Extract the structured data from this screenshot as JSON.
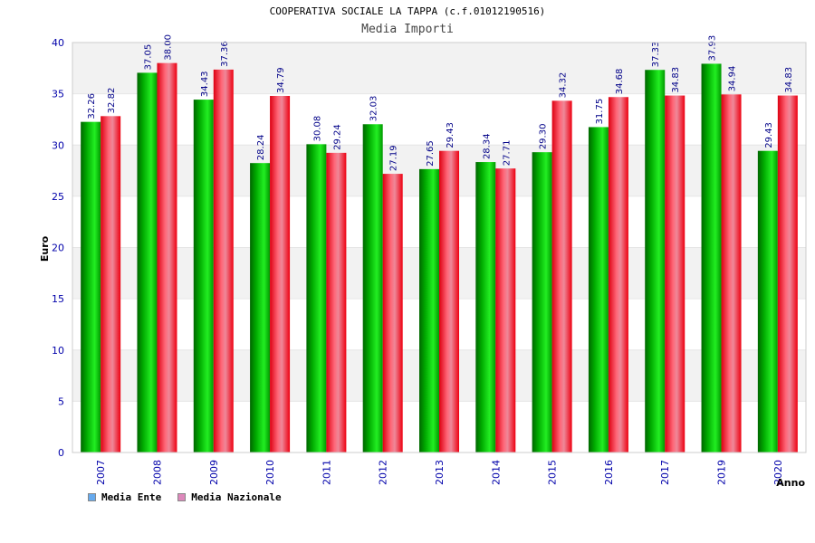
{
  "chart_data": {
    "type": "bar",
    "title": "COOPERATIVA SOCIALE LA TAPPA (c.f.01012190516)",
    "subtitle": "Media Importi",
    "xlabel": "Anno",
    "ylabel": "Euro",
    "ylim": [
      0,
      40
    ],
    "yticks": [
      0,
      5,
      10,
      15,
      20,
      25,
      30,
      35,
      40
    ],
    "grid": true,
    "legend_position": "bottom-left",
    "categories": [
      "2007",
      "2008",
      "2009",
      "2010",
      "2011",
      "2012",
      "2013",
      "2014",
      "2015",
      "2016",
      "2017",
      "2019",
      "2020"
    ],
    "series": [
      {
        "name": "Media Ente",
        "color": "#00cc00",
        "legend_color": "#66aaee",
        "values": [
          32.26,
          37.05,
          34.43,
          28.24,
          30.08,
          32.03,
          27.65,
          28.34,
          29.3,
          31.75,
          37.33,
          37.93,
          29.43
        ],
        "labels": [
          "32.26",
          "37.05",
          "34.43",
          "28.24",
          "30.08",
          "32.03",
          "27.65",
          "28.34",
          "29.30",
          "31.75",
          "37.33",
          "37.93",
          "29.43"
        ]
      },
      {
        "name": "Media Nazionale",
        "color": "#ee1122",
        "legend_color": "#dd88bb",
        "values": [
          32.82,
          38.0,
          37.36,
          34.79,
          29.24,
          27.19,
          29.43,
          27.71,
          34.32,
          34.68,
          34.83,
          34.94,
          34.83
        ],
        "labels": [
          "32.82",
          "38.00",
          "37.36",
          "34.79",
          "29.24",
          "27.19",
          "29.43",
          "27.71",
          "34.32",
          "34.68",
          "34.83",
          "34.94",
          "34.83"
        ]
      }
    ]
  }
}
